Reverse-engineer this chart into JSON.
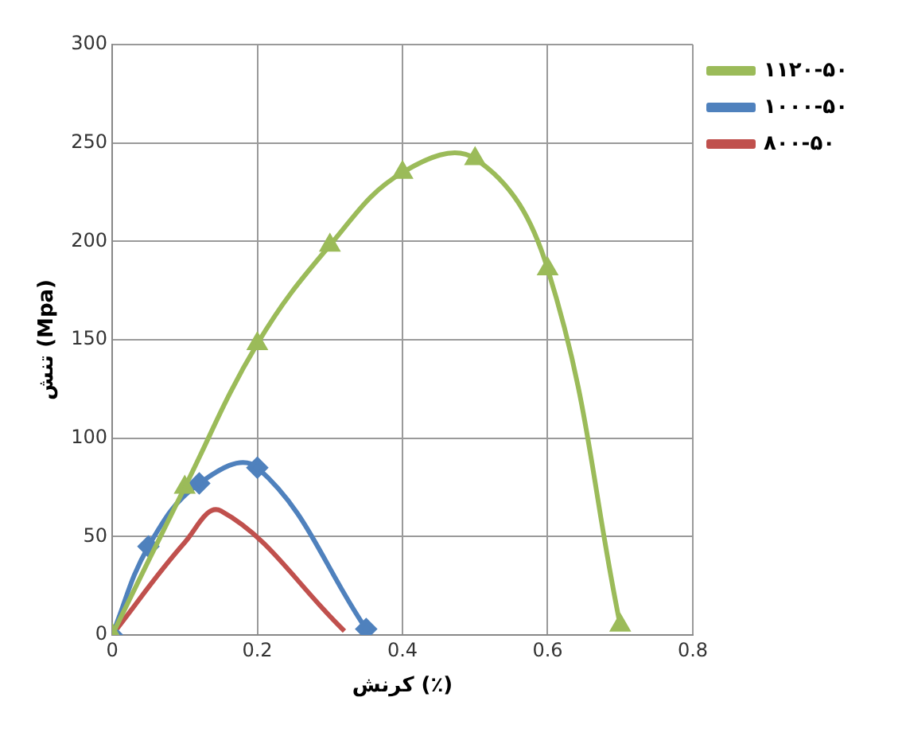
{
  "chart_data": {
    "type": "line",
    "xlabel": "کرنش (٪)",
    "ylabel": "تنش (Mpa)",
    "xlim": [
      0,
      0.8
    ],
    "xticks": [
      0,
      0.2,
      0.4,
      0.6,
      0.8
    ],
    "ylim": [
      0,
      300
    ],
    "yticks": [
      0,
      50,
      100,
      150,
      200,
      250,
      300
    ],
    "grid": true,
    "legend": "right",
    "series": [
      {
        "name": "۱۱۲۰-۵۰",
        "color": "#9bbb59",
        "marker": "triangle",
        "x": [
          0,
          0.1,
          0.2,
          0.3,
          0.4,
          0.5,
          0.6,
          0.7
        ],
        "values": [
          0,
          75,
          148,
          198,
          235,
          242,
          186,
          5
        ]
      },
      {
        "name": "۱۰۰۰-۵۰",
        "color": "#4f81bd",
        "marker": "diamond",
        "x": [
          0,
          0.05,
          0.12,
          0.2,
          0.35
        ],
        "values": [
          0,
          45,
          77,
          85,
          3
        ]
      },
      {
        "name": "۸۰۰-۵۰",
        "color": "#c0504d",
        "marker": "none",
        "x": [
          0,
          0.1,
          0.15,
          0.32
        ],
        "values": [
          0,
          47,
          63,
          2
        ]
      }
    ]
  }
}
